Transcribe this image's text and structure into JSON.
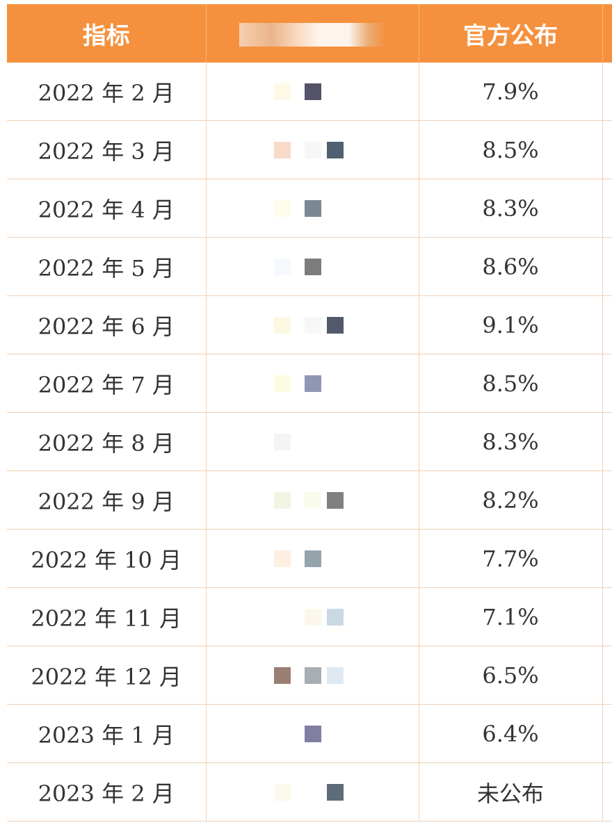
{
  "table": {
    "headers": {
      "indicator": "指标",
      "masked": "",
      "official": "官方公布"
    },
    "rows": [
      {
        "month": "2022 年 2 月",
        "official": "7.9%",
        "swatches": [
          "#fdf9e6",
          "#54536a",
          "#ffffff"
        ]
      },
      {
        "month": "2022 年 3 月",
        "official": "8.5%",
        "swatches": [
          "#f9d9c8",
          "#f7f7fa",
          "#4f6170"
        ]
      },
      {
        "month": "2022 年 4 月",
        "official": "8.3%",
        "swatches": [
          "#fdfcea",
          "#7b8793",
          "#ffffff"
        ]
      },
      {
        "month": "2022 年 5 月",
        "official": "8.6%",
        "swatches": [
          "#f5f8fd",
          "#7c7c7c",
          "#ffffff"
        ]
      },
      {
        "month": "2022 年 6 月",
        "official": "9.1%",
        "swatches": [
          "#fdf8e2",
          "#f9f6fa",
          "#52596a"
        ]
      },
      {
        "month": "2022 年 7 月",
        "official": "8.5%",
        "swatches": [
          "#fdfbe1",
          "#9196b4",
          "#ffffff"
        ]
      },
      {
        "month": "2022 年 8 月",
        "official": "8.3%",
        "swatches": [
          "#f6f3f3",
          "#ffffff",
          "#ffffff"
        ]
      },
      {
        "month": "2022 年 9 月",
        "official": "8.2%",
        "swatches": [
          "#f1f5e3",
          "#fbfbed",
          "#808080"
        ]
      },
      {
        "month": "2022 年 10 月",
        "official": "7.7%",
        "swatches": [
          "#fdf0e2",
          "#95a3ab",
          "#ffffff"
        ]
      },
      {
        "month": "2022 年 11 月",
        "official": "7.1%",
        "swatches": [
          "#ffffff",
          "#fcf7ec",
          "#c8d9e3"
        ]
      },
      {
        "month": "2022 年 12 月",
        "official": "6.5%",
        "swatches": [
          "#9b7f72",
          "#a9aeb2",
          "#dfe9f1"
        ]
      },
      {
        "month": "2023 年 1 月",
        "official": "6.4%",
        "swatches": [
          "#ffffff",
          "#807ea1",
          "#ffffff"
        ]
      },
      {
        "month": "2023 年 2 月",
        "official": "未公布",
        "swatches": [
          "#fbf9eb",
          "#ffffff",
          "#5d6c78"
        ]
      }
    ]
  },
  "colors": {
    "header_bg": "#f5913e",
    "header_text": "#ffffff",
    "grid": "#f3cfb2",
    "body_text": "#333333"
  }
}
